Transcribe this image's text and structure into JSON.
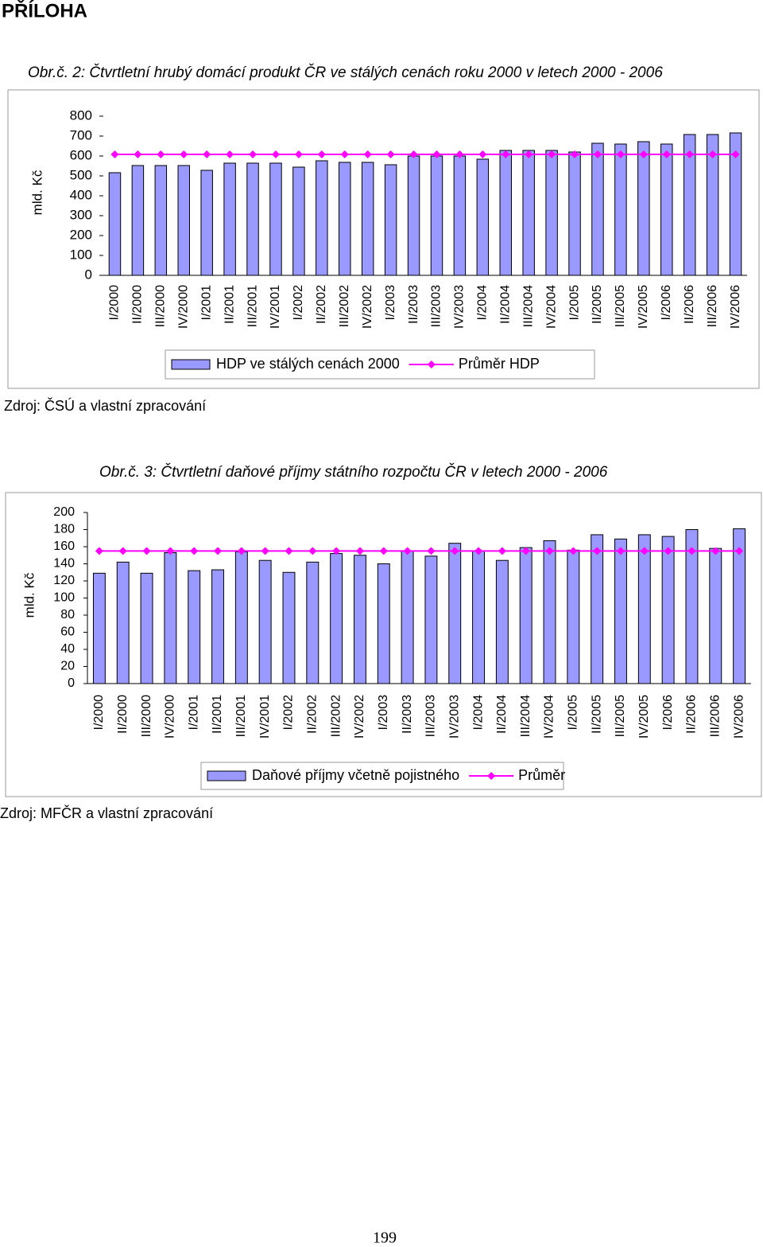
{
  "heading": "PŘÍLOHA",
  "page_number": "199",
  "chart_data": [
    {
      "type": "bar",
      "title": "Obr.č. 2: Čtvrtletní hrubý domácí produkt ČR ve stálých cenách roku 2000 v letech 2000 - 2006",
      "y_label": "mld. Kč",
      "source": "Zdroj: ČSÚ a vlastní zpracování",
      "categories": [
        "I/2000",
        "II/2000",
        "III/2000",
        "IV/2000",
        "I/2001",
        "II/2001",
        "III/2001",
        "IV/2001",
        "I/2002",
        "II/2002",
        "III/2002",
        "IV/2002",
        "I/2003",
        "II/2003",
        "III/2003",
        "IV/2003",
        "I/2004",
        "II/2004",
        "III/2004",
        "IV/2004",
        "I/2005",
        "II/2005",
        "III/2005",
        "IV/2005",
        "I/2006",
        "II/2006",
        "III/2006",
        "IV/2006"
      ],
      "series": [
        {
          "name": "HDP ve stálých cenách 2000",
          "type": "bar",
          "color": "#9999ff",
          "values": [
            516,
            552,
            552,
            552,
            528,
            564,
            564,
            564,
            544,
            576,
            568,
            568,
            556,
            600,
            600,
            600,
            584,
            628,
            628,
            628,
            620,
            664,
            660,
            672,
            660,
            708,
            708,
            716
          ]
        },
        {
          "name": "Průměr HDP",
          "type": "line",
          "color": "#ff00ff",
          "values": [
            608,
            608,
            608,
            608,
            608,
            608,
            608,
            608,
            608,
            608,
            608,
            608,
            608,
            608,
            608,
            608,
            608,
            608,
            608,
            608,
            608,
            608,
            608,
            608,
            608,
            608,
            608,
            608
          ]
        }
      ],
      "ylim": [
        0,
        800
      ],
      "yticks": [
        0,
        100,
        200,
        300,
        400,
        500,
        600,
        700,
        800
      ],
      "grid": false,
      "legend": "bottom"
    },
    {
      "type": "bar",
      "title": "Obr.č. 3: Čtvrtletní daňové příjmy státního rozpočtu ČR v letech 2000 - 2006",
      "y_label": "mld. Kč",
      "source": "Zdroj: MFČR a vlastní zpracování",
      "categories": [
        "I/2000",
        "II/2000",
        "III/2000",
        "IV/2000",
        "I/2001",
        "II/2001",
        "III/2001",
        "IV/2001",
        "I/2002",
        "II/2002",
        "III/2002",
        "IV/2002",
        "I/2003",
        "II/2003",
        "III/2003",
        "IV/2003",
        "I/2004",
        "II/2004",
        "III/2004",
        "IV/2004",
        "I/2005",
        "II/2005",
        "III/2005",
        "IV/2005",
        "I/2006",
        "II/2006",
        "III/2006",
        "IV/2006"
      ],
      "series": [
        {
          "name": "Daňové příjmy včetně pojistného",
          "type": "bar",
          "color": "#9999ff",
          "values": [
            129,
            142,
            129,
            153,
            132,
            133,
            154,
            144,
            130,
            142,
            152,
            150,
            140,
            155,
            149,
            164,
            155,
            144,
            159,
            167,
            156,
            174,
            169,
            174,
            172,
            180,
            158,
            181
          ]
        },
        {
          "name": "Průměr",
          "type": "line",
          "color": "#ff00ff",
          "values": [
            155,
            155,
            155,
            155,
            155,
            155,
            155,
            155,
            155,
            155,
            155,
            155,
            155,
            155,
            155,
            155,
            155,
            155,
            155,
            155,
            155,
            155,
            155,
            155,
            155,
            155,
            155,
            155
          ]
        }
      ],
      "ylim": [
        0,
        200
      ],
      "yticks": [
        0,
        20,
        40,
        60,
        80,
        100,
        120,
        140,
        160,
        180,
        200
      ],
      "grid": false,
      "legend": "bottom"
    }
  ]
}
